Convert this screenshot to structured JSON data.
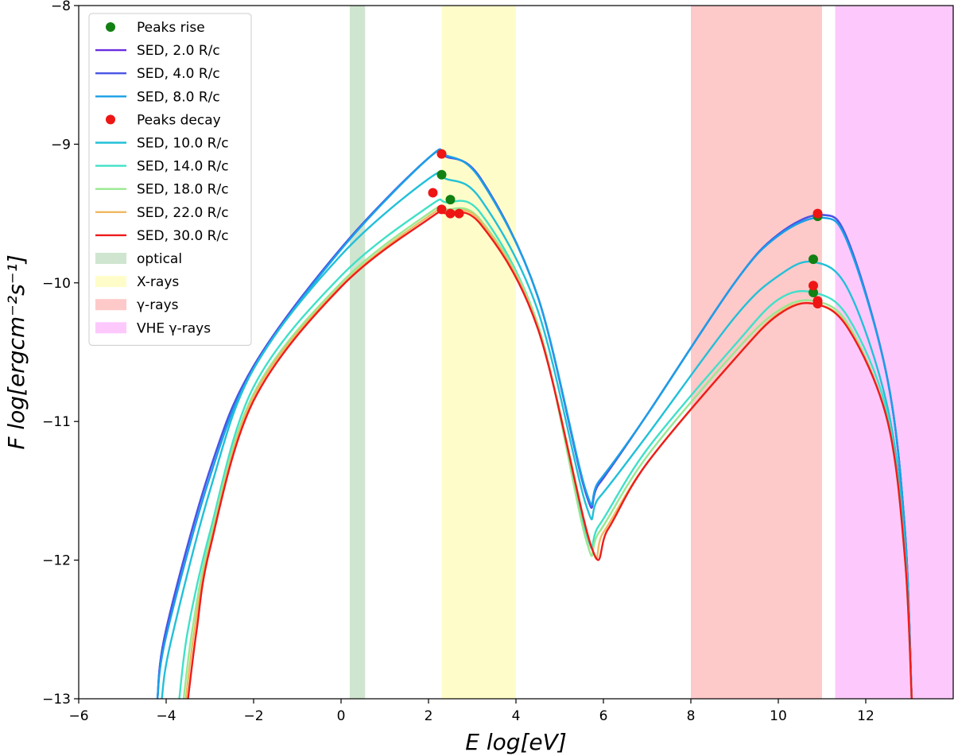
{
  "chart_data": {
    "type": "line",
    "title": "",
    "xlabel": "E log[eV]",
    "ylabel": "F log[ergcm⁻²s⁻¹]",
    "xlim": [
      -6,
      14
    ],
    "ylim": [
      -13,
      -8
    ],
    "xticks": [
      -6,
      -4,
      -2,
      0,
      2,
      4,
      6,
      8,
      10,
      12
    ],
    "xtick_labels": [
      "−6",
      "−4",
      "−2",
      "0",
      "2",
      "4",
      "6",
      "8",
      "10",
      "12"
    ],
    "yticks": [
      -13,
      -12,
      -11,
      -10,
      -9,
      -8
    ],
    "ytick_labels": [
      "−13",
      "−12",
      "−11",
      "−10",
      "−9",
      "−8"
    ],
    "grid": false,
    "legend_position": "top-left",
    "bands": [
      {
        "name": "optical",
        "label": "optical",
        "x0": 0.2,
        "x1": 0.55,
        "color": "#cfe5cf"
      },
      {
        "name": "x-rays",
        "label": "X-rays",
        "x0": 2.3,
        "x1": 4.0,
        "color": "#fefdc9"
      },
      {
        "name": "gamma-rays",
        "label": "γ-rays",
        "x0": 8.0,
        "x1": 11.0,
        "color": "#fec9c9"
      },
      {
        "name": "vhe-gamma-rays",
        "label": "VHE γ-rays",
        "x0": 11.3,
        "x1": 14.0,
        "color": "#fdc9fd"
      }
    ],
    "series": [
      {
        "name": "SED, 2.0 R/c",
        "color": "#6a2de0",
        "points": [
          [
            -4.2,
            -13
          ],
          [
            -4,
            -12.5
          ],
          [
            -3,
            -11.35
          ],
          [
            -2,
            -10.6
          ],
          [
            0,
            -9.75
          ],
          [
            2,
            -9.1
          ],
          [
            2.4,
            -9.09
          ],
          [
            3.2,
            -9.25
          ],
          [
            4.5,
            -10.1
          ],
          [
            5.6,
            -11.52
          ],
          [
            5.9,
            -11.45
          ],
          [
            7,
            -10.95
          ],
          [
            9,
            -10
          ],
          [
            10,
            -9.65
          ],
          [
            11,
            -9.51
          ],
          [
            11.6,
            -9.7
          ],
          [
            12.5,
            -10.7
          ],
          [
            12.9,
            -11.8
          ],
          [
            13.05,
            -13
          ]
        ]
      },
      {
        "name": "SED, 4.0 R/c",
        "color": "#4a55e6",
        "points": [
          [
            -4.2,
            -13
          ],
          [
            -4,
            -12.5
          ],
          [
            -3,
            -11.35
          ],
          [
            -2,
            -10.6
          ],
          [
            0,
            -9.75
          ],
          [
            2,
            -9.1
          ],
          [
            2.4,
            -9.09
          ],
          [
            3.2,
            -9.25
          ],
          [
            4.5,
            -10.1
          ],
          [
            5.6,
            -11.52
          ],
          [
            5.9,
            -11.45
          ],
          [
            7,
            -10.95
          ],
          [
            9,
            -10
          ],
          [
            10,
            -9.65
          ],
          [
            11,
            -9.51
          ],
          [
            11.6,
            -9.7
          ],
          [
            12.5,
            -10.7
          ],
          [
            12.9,
            -11.8
          ],
          [
            13.05,
            -13
          ]
        ]
      },
      {
        "name": "SED, 8.0 R/c",
        "color": "#1aa0e6",
        "points": [
          [
            -4.2,
            -13
          ],
          [
            -4,
            -12.55
          ],
          [
            -3,
            -11.4
          ],
          [
            -2,
            -10.62
          ],
          [
            0,
            -9.76
          ],
          [
            2,
            -9.1
          ],
          [
            2.4,
            -9.08
          ],
          [
            3.2,
            -9.26
          ],
          [
            4.5,
            -10.1
          ],
          [
            5.6,
            -11.5
          ],
          [
            5.9,
            -11.43
          ],
          [
            7,
            -10.95
          ],
          [
            9,
            -10
          ],
          [
            10,
            -9.66
          ],
          [
            11,
            -9.53
          ],
          [
            11.6,
            -9.72
          ],
          [
            12.5,
            -10.7
          ],
          [
            12.9,
            -11.8
          ],
          [
            13.05,
            -13
          ]
        ]
      },
      {
        "name": "SED, 10.0 R/c",
        "color": "#22c0d8",
        "points": [
          [
            -4.1,
            -13
          ],
          [
            -3.9,
            -12.6
          ],
          [
            -3,
            -11.5
          ],
          [
            -2,
            -10.62
          ],
          [
            0,
            -9.8
          ],
          [
            2,
            -9.25
          ],
          [
            2.4,
            -9.25
          ],
          [
            3.2,
            -9.4
          ],
          [
            4.5,
            -10.2
          ],
          [
            5.6,
            -11.6
          ],
          [
            5.9,
            -11.55
          ],
          [
            7,
            -11.1
          ],
          [
            9,
            -10.25
          ],
          [
            10,
            -9.95
          ],
          [
            10.8,
            -9.85
          ],
          [
            11.6,
            -10.05
          ],
          [
            12.5,
            -10.9
          ],
          [
            12.9,
            -11.9
          ],
          [
            13.05,
            -13
          ]
        ]
      },
      {
        "name": "SED, 14.0 R/c",
        "color": "#40e0c8",
        "points": [
          [
            -3.7,
            -13
          ],
          [
            -3.5,
            -12.5
          ],
          [
            -3,
            -11.8
          ],
          [
            -2,
            -10.75
          ],
          [
            0,
            -9.95
          ],
          [
            2,
            -9.45
          ],
          [
            2.4,
            -9.42
          ],
          [
            3.2,
            -9.5
          ],
          [
            4.5,
            -10.3
          ],
          [
            5.6,
            -11.8
          ],
          [
            5.9,
            -11.75
          ],
          [
            7,
            -11.2
          ],
          [
            9,
            -10.45
          ],
          [
            10,
            -10.12
          ],
          [
            10.8,
            -10.07
          ],
          [
            11.6,
            -10.25
          ],
          [
            12.5,
            -10.95
          ],
          [
            12.9,
            -12
          ],
          [
            13.05,
            -13
          ]
        ]
      },
      {
        "name": "SED, 18.0 R/c",
        "color": "#98e890",
        "points": [
          [
            -3.6,
            -13
          ],
          [
            -3.4,
            -12.5
          ],
          [
            -3,
            -11.85
          ],
          [
            -2,
            -10.8
          ],
          [
            0,
            -10
          ],
          [
            2,
            -9.5
          ],
          [
            2.4,
            -9.47
          ],
          [
            3.2,
            -9.55
          ],
          [
            4.5,
            -10.3
          ],
          [
            5.6,
            -11.85
          ],
          [
            5.9,
            -11.8
          ],
          [
            7,
            -11.25
          ],
          [
            9,
            -10.5
          ],
          [
            10,
            -10.2
          ],
          [
            10.8,
            -10.13
          ],
          [
            11.6,
            -10.3
          ],
          [
            12.5,
            -11
          ],
          [
            12.9,
            -12
          ],
          [
            13.05,
            -13
          ]
        ]
      },
      {
        "name": "SED, 22.0 R/c",
        "color": "#f0b860",
        "points": [
          [
            -3.55,
            -13
          ],
          [
            -3.35,
            -12.5
          ],
          [
            -3,
            -11.9
          ],
          [
            -2,
            -10.82
          ],
          [
            0,
            -10.02
          ],
          [
            2,
            -9.52
          ],
          [
            2.4,
            -9.49
          ],
          [
            3.2,
            -9.56
          ],
          [
            4.5,
            -10.32
          ],
          [
            5.7,
            -11.88
          ],
          [
            6,
            -11.8
          ],
          [
            7,
            -11.3
          ],
          [
            9,
            -10.55
          ],
          [
            10,
            -10.22
          ],
          [
            10.8,
            -10.15
          ],
          [
            11.6,
            -10.32
          ],
          [
            12.5,
            -11
          ],
          [
            12.9,
            -12
          ],
          [
            13.05,
            -13
          ]
        ]
      },
      {
        "name": "SED, 30.0 R/c",
        "color": "#ee1c1c",
        "points": [
          [
            -3.5,
            -13
          ],
          [
            -3.3,
            -12.5
          ],
          [
            -3,
            -11.92
          ],
          [
            -2,
            -10.85
          ],
          [
            0,
            -10.03
          ],
          [
            2,
            -9.54
          ],
          [
            2.4,
            -9.5
          ],
          [
            3.2,
            -9.58
          ],
          [
            4.5,
            -10.33
          ],
          [
            5.72,
            -11.9
          ],
          [
            6.1,
            -11.78
          ],
          [
            7,
            -11.3
          ],
          [
            9,
            -10.55
          ],
          [
            10,
            -10.23
          ],
          [
            10.8,
            -10.15
          ],
          [
            11.6,
            -10.33
          ],
          [
            12.5,
            -11
          ],
          [
            12.9,
            -12
          ],
          [
            13.05,
            -13
          ]
        ]
      }
    ],
    "peaks": [
      {
        "name": "Peaks rise",
        "color": "#128012",
        "points": [
          [
            2.3,
            -9.22
          ],
          [
            2.5,
            -9.4
          ],
          [
            10.9,
            -9.52
          ],
          [
            10.8,
            -9.83
          ],
          [
            10.8,
            -10.07
          ]
        ]
      },
      {
        "name": "Peaks decay",
        "color": "#ee1515",
        "points": [
          [
            2.3,
            -9.07
          ],
          [
            2.1,
            -9.35
          ],
          [
            2.3,
            -9.47
          ],
          [
            2.5,
            -9.5
          ],
          [
            2.7,
            -9.5
          ],
          [
            10.9,
            -9.5
          ],
          [
            10.8,
            -10.02
          ],
          [
            10.9,
            -10.13
          ],
          [
            10.9,
            -10.15
          ]
        ]
      }
    ],
    "legend": [
      {
        "kind": "marker",
        "label": "Peaks rise",
        "color": "#128012"
      },
      {
        "kind": "line",
        "label": "SED, 2.0 R/c",
        "color": "#6a2de0"
      },
      {
        "kind": "line",
        "label": "SED, 4.0 R/c",
        "color": "#4a55e6"
      },
      {
        "kind": "line",
        "label": "SED, 8.0 R/c",
        "color": "#1aa0e6"
      },
      {
        "kind": "marker",
        "label": "Peaks decay",
        "color": "#ee1515"
      },
      {
        "kind": "line",
        "label": "SED, 10.0 R/c",
        "color": "#22c0d8"
      },
      {
        "kind": "line",
        "label": "SED, 14.0 R/c",
        "color": "#40e0c8"
      },
      {
        "kind": "line",
        "label": "SED, 18.0 R/c",
        "color": "#98e890"
      },
      {
        "kind": "line",
        "label": "SED, 22.0 R/c",
        "color": "#f0b860"
      },
      {
        "kind": "line",
        "label": "SED, 30.0 R/c",
        "color": "#ee1c1c"
      },
      {
        "kind": "patch",
        "label": "optical",
        "color": "#cfe5cf"
      },
      {
        "kind": "patch",
        "label": "X-rays",
        "color": "#fefdc9"
      },
      {
        "kind": "patch",
        "label": "γ-rays",
        "color": "#fec9c9"
      },
      {
        "kind": "patch",
        "label": "VHE γ-rays",
        "color": "#fdc9fd"
      }
    ]
  }
}
